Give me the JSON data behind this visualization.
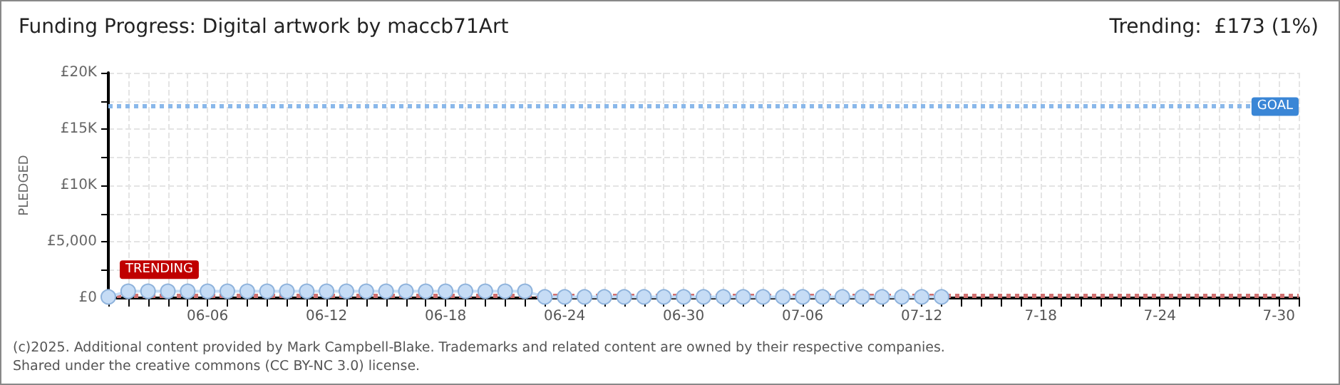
{
  "chart_data": {
    "type": "line",
    "title": "Funding Progress: Digital artwork by maccb71Art",
    "ylabel": "PLEDGED",
    "annotations": [
      "Trending:  £173 (1%)",
      "(c)2025. Additional content provided by Mark Campbell-Blake. Trademarks and related content are owned by their respective companies.",
      "Shared under the creative commons (CC BY-NC 3.0) license."
    ],
    "categories": [
      null,
      null,
      null,
      null,
      null,
      "06-06",
      null,
      null,
      null,
      null,
      null,
      "06-12",
      null,
      null,
      null,
      null,
      null,
      "06-18",
      null,
      null,
      null,
      null,
      null,
      "06-24",
      null,
      null,
      null,
      null,
      null,
      "06-30",
      null,
      null,
      null,
      null,
      null,
      "07-06",
      null,
      null,
      null,
      null,
      null,
      "07-12",
      null,
      null,
      null,
      null,
      null,
      "7-18",
      null,
      null,
      null,
      null,
      null,
      "7-24",
      null,
      null,
      null,
      null,
      null,
      "7-30",
      null
    ],
    "series": [
      {
        "color": "#c6dcf5",
        "values": [
          100,
          600,
          600,
          600,
          600,
          600,
          600,
          600,
          600,
          600,
          600,
          600,
          600,
          600,
          600,
          600,
          600,
          600,
          600,
          600,
          600,
          600,
          100,
          100,
          100,
          100,
          100,
          100,
          100,
          100,
          100,
          100,
          100,
          100,
          100,
          100,
          100,
          100,
          100,
          100,
          100,
          100,
          100,
          null,
          null,
          null,
          null,
          null,
          null,
          null,
          null,
          null,
          null,
          null,
          null,
          null,
          null,
          null,
          null,
          null,
          null
        ]
      }
    ],
    "marker": "circle",
    "ylim": [
      0,
      20000
    ],
    "yticks": [
      {
        "value": 0,
        "label": "£0"
      },
      {
        "value": 2500,
        "label": null
      },
      {
        "value": 5000,
        "label": "£5,000"
      },
      {
        "value": 7500,
        "label": null
      },
      {
        "value": 10000,
        "label": "£10K"
      },
      {
        "value": 12500,
        "label": null
      },
      {
        "value": 15000,
        "label": "£15K"
      },
      {
        "value": 17500,
        "label": null
      },
      {
        "value": 20000,
        "label": "£20K"
      }
    ],
    "grid": true,
    "ref_lines": [
      {
        "axis": "y",
        "value": 17000,
        "label": "GOAL",
        "color": "#8ab8ea",
        "line_style": "dotted"
      },
      {
        "axis": "y",
        "value": 173,
        "label": "TRENDING",
        "color": "#d07070",
        "line_style": "dotted"
      }
    ]
  }
}
